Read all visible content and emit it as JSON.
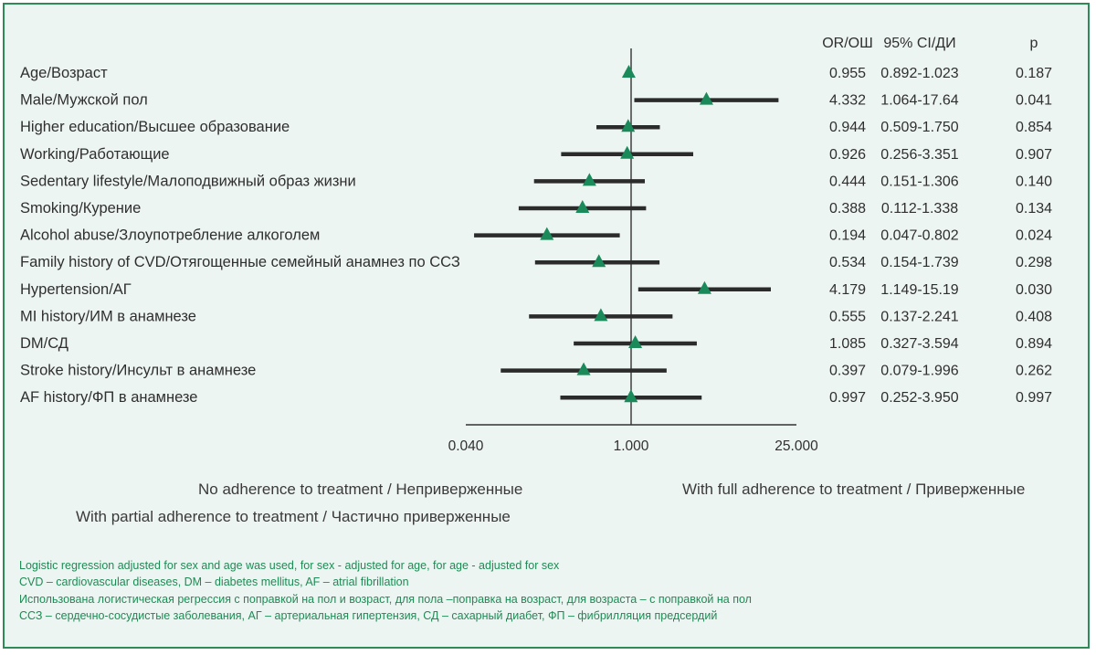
{
  "header": {
    "or_label": "OR/ОШ",
    "ci_label": "95% CI/ДИ",
    "p_label": "p"
  },
  "legend": {
    "no_adherence": "No adherence to treatment / Неприверженные",
    "full_adherence": "With full adherence to treatment / Приверженные",
    "partial_adherence": "With partial adherence to treatment / Частично приверженные"
  },
  "notes": [
    "Logistic regression adjusted for sex and age was used, for sex - adjusted for age, for age - adjusted for sex",
    "CVD – cardiovascular diseases, DM – diabetes mellitus, AF – atrial fibrillation",
    "Использована логистическая регрессия с поправкой на пол и возраст, для пола –поправка на возраст, для возраста – с поправкой на пол",
    "ССЗ – сердечно-сосудистые заболевания, АГ – артериальная гипертензия, СД – сахарный диабет, ФП – фибрилляция предсердий"
  ],
  "colors": {
    "marker": "#1a8a5a",
    "ci_line": "#2b2b2b",
    "text": "#2f2f2f",
    "note": "#1f8a55",
    "background": "#edf5f2",
    "border": "#2e8b57"
  },
  "chart_data": {
    "type": "forest",
    "x_scale": "log",
    "xlim": [
      0.04,
      25
    ],
    "x_ticks": [
      "0.040",
      "1.000",
      "25.000"
    ],
    "x_tick_values": [
      0.04,
      1,
      25
    ],
    "reference_line": 1,
    "rows": [
      {
        "label": "Age/Возраст",
        "or": 0.955,
        "or_text": "0.955",
        "ci_low": 0.892,
        "ci_high": 1.023,
        "ci_text": "0.892-1.023",
        "p": "0.187"
      },
      {
        "label": "Male/Мужской пол",
        "or": 4.332,
        "or_text": "4.332",
        "ci_low": 1.064,
        "ci_high": 17.64,
        "ci_text": "1.064-17.64",
        "p": "0.041"
      },
      {
        "label": "Higher education/Высшее образование",
        "or": 0.944,
        "or_text": "0.944",
        "ci_low": 0.509,
        "ci_high": 1.75,
        "ci_text": "0.509-1.750",
        "p": "0.854"
      },
      {
        "label": "Working/Работающие",
        "or": 0.926,
        "or_text": "0.926",
        "ci_low": 0.256,
        "ci_high": 3.351,
        "ci_text": "0.256-3.351",
        "p": "0.907"
      },
      {
        "label": "Sedentary lifestyle/Малоподвижный образ жизни",
        "or": 0.444,
        "or_text": "0.444",
        "ci_low": 0.151,
        "ci_high": 1.306,
        "ci_text": "0.151-1.306",
        "p": "0.140"
      },
      {
        "label": "Smoking/Курение",
        "or": 0.388,
        "or_text": "0.388",
        "ci_low": 0.112,
        "ci_high": 1.338,
        "ci_text": "0.112-1.338",
        "p": "0.134"
      },
      {
        "label": "Alcohol abuse/Злоупотребление алкоголем",
        "or": 0.194,
        "or_text": "0.194",
        "ci_low": 0.047,
        "ci_high": 0.802,
        "ci_text": "0.047-0.802",
        "p": "0.024"
      },
      {
        "label": "Family history of CVD/Отягощенные семейный анамнез по ССЗ",
        "or": 0.534,
        "or_text": "0.534",
        "ci_low": 0.154,
        "ci_high": 1.739,
        "ci_text": "0.154-1.739",
        "p": "0.298"
      },
      {
        "label": "Hypertension/АГ",
        "or": 4.179,
        "or_text": "4.179",
        "ci_low": 1.149,
        "ci_high": 15.19,
        "ci_text": "1.149-15.19",
        "p": "0.030"
      },
      {
        "label": "MI history/ИМ в анамнезе",
        "or": 0.555,
        "or_text": "0.555",
        "ci_low": 0.137,
        "ci_high": 2.241,
        "ci_text": "0.137-2.241",
        "p": "0.408"
      },
      {
        "label": "DM/СД",
        "or": 1.085,
        "or_text": "1.085",
        "ci_low": 0.327,
        "ci_high": 3.594,
        "ci_text": "0.327-3.594",
        "p": "0.894"
      },
      {
        "label": "Stroke history/Инсульт в анамнезе",
        "or": 0.397,
        "or_text": "0.397",
        "ci_low": 0.079,
        "ci_high": 1.996,
        "ci_text": "0.079-1.996",
        "p": "0.262"
      },
      {
        "label": "AF history/ФП в анамнезе",
        "or": 0.997,
        "or_text": "0.997",
        "ci_low": 0.252,
        "ci_high": 3.95,
        "ci_text": "0.252-3.950",
        "p": "0.997"
      }
    ]
  }
}
